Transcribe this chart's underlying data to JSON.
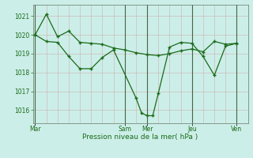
{
  "xlabel": "Pression niveau de la mer( hPa )",
  "bg_color": "#cceee8",
  "grid_color_minor": "#b8ddd8",
  "grid_color_major": "#99cccc",
  "line_color": "#1a6b1a",
  "ylim": [
    1015.3,
    1021.6
  ],
  "yticks": [
    1016,
    1017,
    1018,
    1019,
    1020,
    1021
  ],
  "day_labels": [
    "Mar",
    "Sam",
    "Mer",
    "Jeu",
    "Ven"
  ],
  "day_tick_pos": [
    0,
    4,
    5,
    7,
    9
  ],
  "vline_dark": [
    0,
    4,
    5,
    7,
    9
  ],
  "xlim": [
    -0.1,
    9.5
  ],
  "series1_x": [
    0,
    0.5,
    1.0,
    1.5,
    2.0,
    2.5,
    3.0,
    3.5,
    4.0,
    4.5,
    5.0,
    5.5,
    6.0,
    6.5,
    7.0,
    7.5,
    8.0,
    8.5,
    9.0
  ],
  "series1_y": [
    1020.0,
    1021.1,
    1019.9,
    1020.2,
    1019.6,
    1019.55,
    1019.5,
    1019.3,
    1019.2,
    1019.05,
    1018.95,
    1018.9,
    1019.0,
    1019.15,
    1019.25,
    1019.1,
    1019.65,
    1019.5,
    1019.55
  ],
  "series2_x": [
    0,
    0.5,
    1.0,
    1.5,
    2.0,
    2.5,
    3.0,
    3.5,
    4.5,
    4.75,
    5.0,
    5.25,
    5.5,
    6.0,
    6.5,
    7.0,
    7.5,
    8.0,
    8.5,
    9.0
  ],
  "series2_y": [
    1020.0,
    1019.65,
    1019.6,
    1018.85,
    1018.2,
    1018.2,
    1018.8,
    1019.2,
    1016.65,
    1015.85,
    1015.7,
    1015.7,
    1016.9,
    1019.35,
    1019.6,
    1019.55,
    1018.85,
    1017.85,
    1019.4,
    1019.55
  ]
}
